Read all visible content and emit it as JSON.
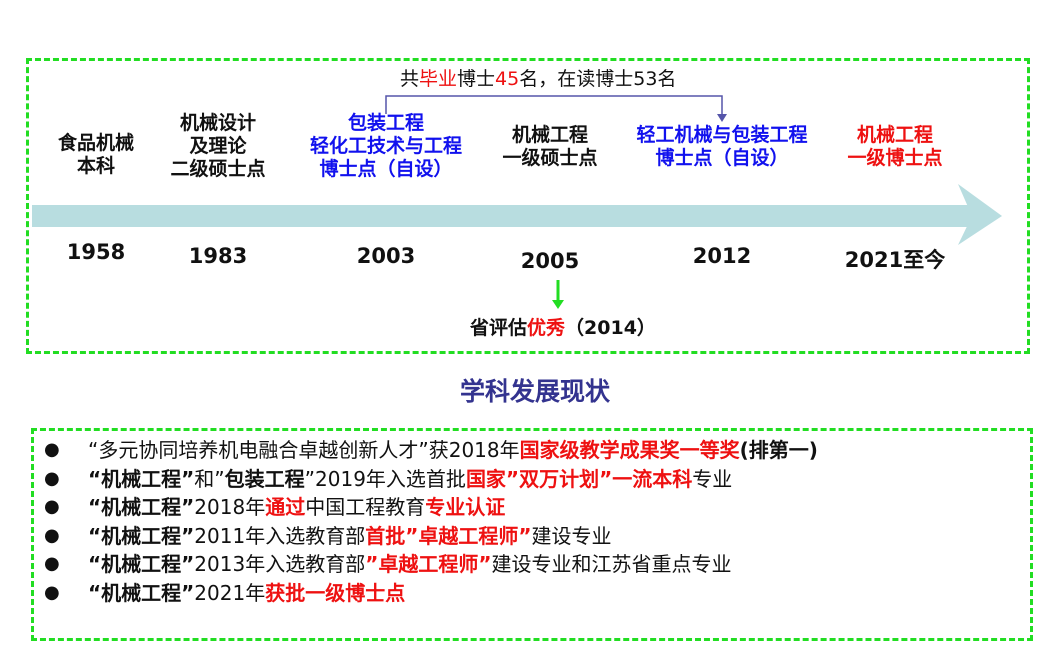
{
  "timeline": {
    "summary": {
      "prefix": "共",
      "highlight1": "毕业",
      "mid1": "博士",
      "highlight2": "45",
      "suffix": "名，在读博士53名"
    },
    "milestones": [
      {
        "lines": [
          "食品机械",
          "本科"
        ],
        "year": "1958",
        "color": "black"
      },
      {
        "lines": [
          "机械设计",
          "及理论",
          "二级硕士点"
        ],
        "year": "1983",
        "color": "black"
      },
      {
        "lines": [
          "包装工程",
          "轻化工技术与工程",
          "博士点（自设）"
        ],
        "year": "2003",
        "color": "blue"
      },
      {
        "lines": [
          "机械工程",
          "一级硕士点"
        ],
        "year": "2005",
        "color": "black"
      },
      {
        "lines": [
          "轻工机械与包装工程",
          "博士点（自设）"
        ],
        "year": "2012",
        "color": "blue"
      },
      {
        "lines": [
          "机械工程",
          "一级博士点"
        ],
        "year": "2021至今",
        "color": "red"
      }
    ],
    "evaluation": {
      "prefix": "省评估",
      "highlight": "优秀",
      "suffix": "（2014）"
    },
    "colors": {
      "arrow": "#b8dde0",
      "bracket": "#5555aa",
      "eval_arrow": "#22dd22",
      "blue": "#1111ee",
      "red": "#ee1111"
    }
  },
  "section_title": "学科发展现状",
  "achievements": [
    [
      {
        "t": "“多元协同培养机电融合卓越创新人才”获2018年",
        "s": "n"
      },
      {
        "t": "国家级教学成果奖一等奖",
        "s": "r"
      },
      {
        "t": "(排第一)",
        "s": "b"
      }
    ],
    [
      {
        "t": "“机械工程”",
        "s": "b"
      },
      {
        "t": "和”",
        "s": "n"
      },
      {
        "t": "包装工程",
        "s": "b"
      },
      {
        "t": "”2019年入选首批",
        "s": "n"
      },
      {
        "t": "国家”双万计划”一流本科",
        "s": "r"
      },
      {
        "t": "专业",
        "s": "n"
      }
    ],
    [
      {
        "t": "“机械工程”",
        "s": "b"
      },
      {
        "t": "2018年",
        "s": "n"
      },
      {
        "t": "通过",
        "s": "r"
      },
      {
        "t": "中国工程教育",
        "s": "n"
      },
      {
        "t": "专业认证",
        "s": "r"
      }
    ],
    [
      {
        "t": "“机械工程”",
        "s": "b"
      },
      {
        "t": "2011年入选教育部",
        "s": "n"
      },
      {
        "t": "首批”卓越工程师”",
        "s": "r"
      },
      {
        "t": "建设专业",
        "s": "n"
      }
    ],
    [
      {
        "t": "“机械工程”",
        "s": "b"
      },
      {
        "t": "2013年入选教育部",
        "s": "n"
      },
      {
        "t": "”卓越工程师”",
        "s": "r"
      },
      {
        "t": "建设专业和江苏省重点专业",
        "s": "n"
      }
    ],
    [
      {
        "t": "“机械工程”",
        "s": "b"
      },
      {
        "t": "2021年",
        "s": "n"
      },
      {
        "t": "获批一级博士点",
        "s": "r"
      }
    ]
  ],
  "bullet": "●"
}
